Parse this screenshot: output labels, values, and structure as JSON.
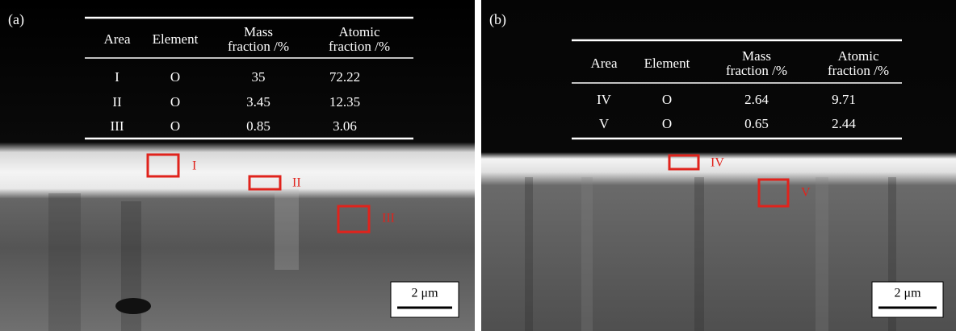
{
  "panels": [
    {
      "label": "(a)",
      "table": {
        "header": [
          "Area",
          "Element",
          "Mass\nfraction /%",
          "Atomic\nfraction /%"
        ],
        "rows": [
          [
            "I",
            "O",
            35,
            72.22
          ],
          [
            "II",
            "O",
            3.45,
            12.35
          ],
          [
            "III",
            "O",
            0.85,
            3.06
          ]
        ]
      },
      "regions": [
        "I",
        "II",
        "III"
      ],
      "scale_bar": "2 μm"
    },
    {
      "label": "(b)",
      "table": {
        "header": [
          "Area",
          "Element",
          "Mass\nfraction /%",
          "Atomic\nfraction /%"
        ],
        "rows": [
          [
            "IV",
            "O",
            2.64,
            9.71
          ],
          [
            "V",
            "O",
            0.65,
            2.44
          ]
        ]
      },
      "regions": [
        "IV",
        "V"
      ],
      "scale_bar": "2 μm"
    }
  ]
}
